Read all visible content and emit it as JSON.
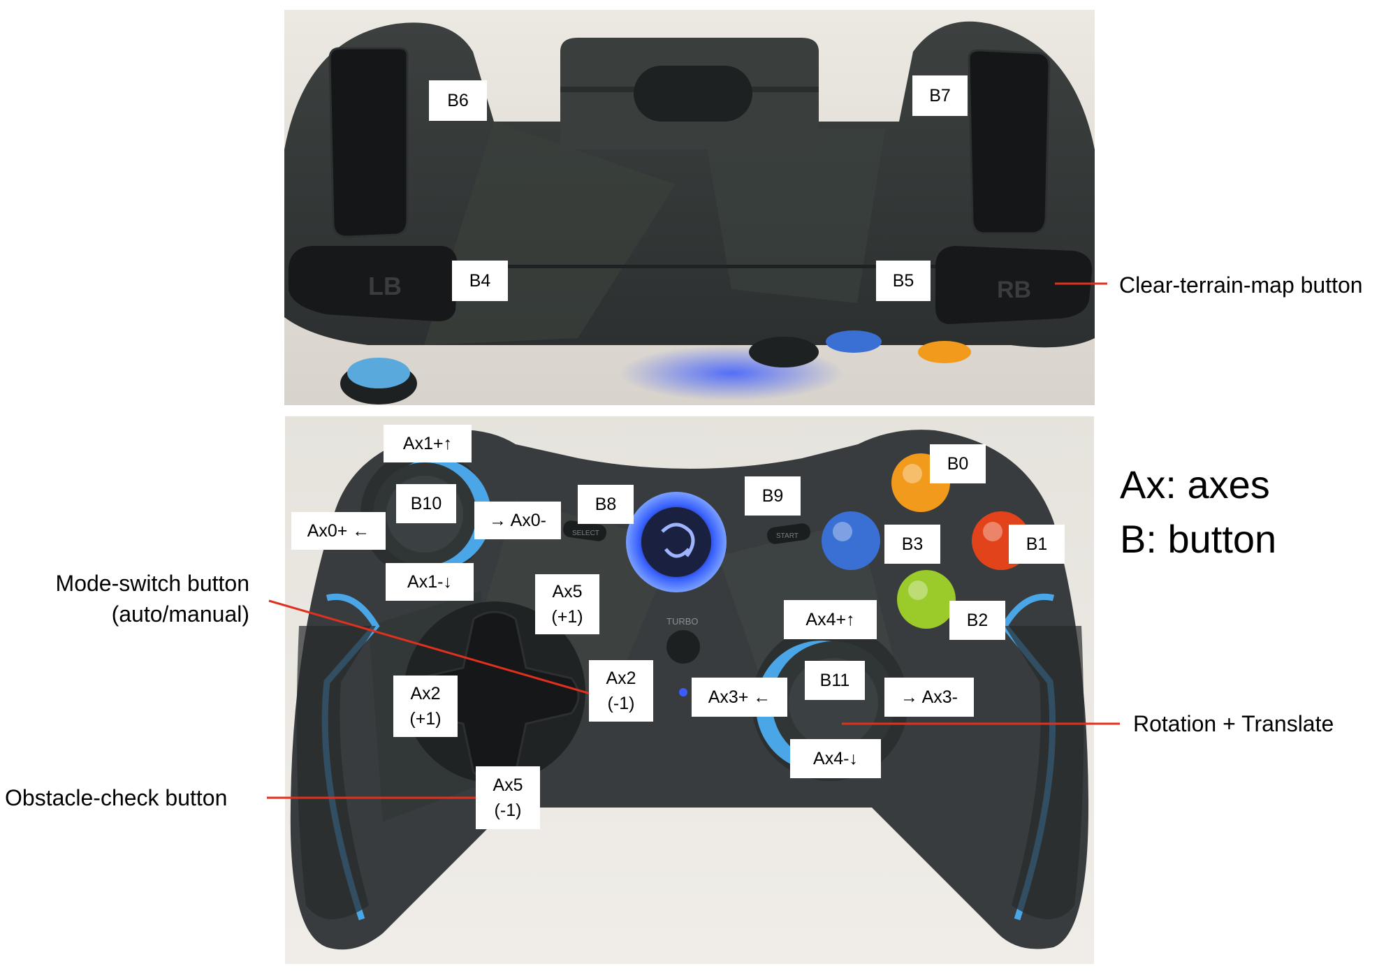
{
  "colors": {
    "accent_red": "#e0301e",
    "controller_body": "#34383a",
    "controller_blue": "#4aa6e6",
    "button_orange": "#f29a1c",
    "button_red": "#e2431a",
    "button_blue": "#3a6fd4",
    "button_green": "#9acb2a",
    "guide_ring": "#2b5cf0"
  },
  "top_view": {
    "labels": {
      "b6": "B6",
      "b7": "B7",
      "b4": "B4",
      "b5": "B5"
    },
    "prints": {
      "lb": "LB",
      "rb": "RB"
    }
  },
  "front_view": {
    "labels": {
      "ax1_up": "Ax1+↑",
      "b10": "B10",
      "ax0_plus": "Ax0+ ←",
      "ax0_minus": "→ Ax0-",
      "ax1_down": "Ax1-↓",
      "b8": "B8",
      "b9": "B9",
      "b0": "B0",
      "b1": "B1",
      "b2": "B2",
      "b3": "B3",
      "ax5_plus_a": "Ax5",
      "ax5_plus_b": "(+1)",
      "ax2_minus_a": "Ax2",
      "ax2_minus_b": "(-1)",
      "ax2_plus_a": "Ax2",
      "ax2_plus_b": "(+1)",
      "ax5_minus_a": "Ax5",
      "ax5_minus_b": "(-1)",
      "ax4_up": "Ax4+↑",
      "b11": "B11",
      "ax3_plus": "Ax3+ ←",
      "ax3_minus": "→ Ax3-",
      "ax4_down": "Ax4-↓"
    },
    "prints": {
      "turbo": "TURBO",
      "select": "SELECT",
      "start": "START"
    }
  },
  "callouts": {
    "clear_terrain": "Clear-terrain-map button",
    "mode_switch_a": "Mode-switch button",
    "mode_switch_b": "(auto/manual)",
    "obstacle_check": "Obstacle-check button",
    "rotation": "Rotation + Translate"
  },
  "legend": {
    "line1": "Ax: axes",
    "line2": "B: button"
  }
}
